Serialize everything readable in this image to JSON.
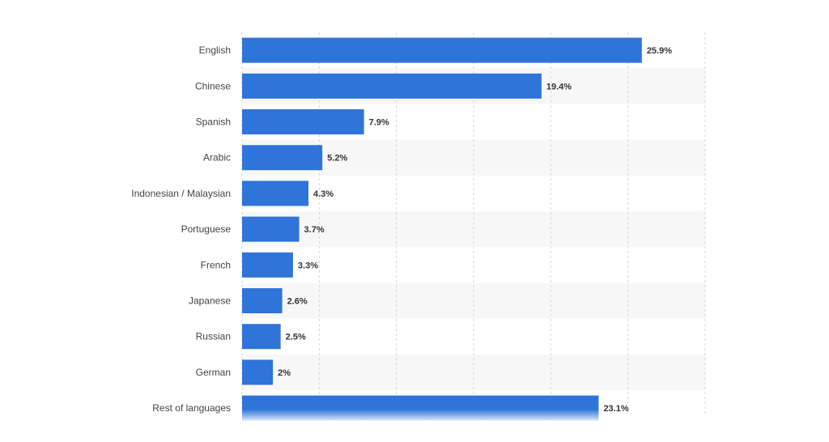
{
  "chart_data": {
    "type": "bar",
    "orientation": "horizontal",
    "title": "",
    "xlabel": "",
    "ylabel": "",
    "categories": [
      "English",
      "Chinese",
      "Spanish",
      "Arabic",
      "Indonesian / Malaysian",
      "Portuguese",
      "French",
      "Japanese",
      "Russian",
      "German",
      "Rest of languages"
    ],
    "values": [
      25.9,
      19.4,
      7.9,
      5.2,
      4.3,
      3.7,
      3.3,
      2.6,
      2.5,
      2,
      23.1
    ],
    "value_labels": [
      "25.9%",
      "19.4%",
      "7.9%",
      "5.2%",
      "4.3%",
      "3.7%",
      "3.3%",
      "2.6%",
      "2.5%",
      "2%",
      "23.1%"
    ],
    "xlim": [
      0,
      30
    ],
    "grid": true,
    "colors": {
      "bar": "#2f74d8",
      "band": "#f7f7f7"
    }
  }
}
